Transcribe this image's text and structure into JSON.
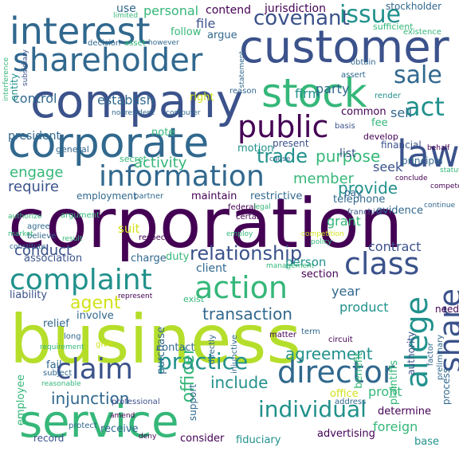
{
  "palette": {
    "dark_purple": "#440154",
    "indigo": "#3b528b",
    "blue": "#31688e",
    "teal": "#21918c",
    "green": "#35b779",
    "lime": "#b5de2b",
    "yellow": "#d2e21b"
  },
  "words": [
    {
      "text": "corporation",
      "color": "#440154"
    },
    {
      "text": "business",
      "color": "#b5de2b"
    },
    {
      "text": "company",
      "color": "#3b528b"
    },
    {
      "text": "customer",
      "color": "#3b528b"
    },
    {
      "text": "corporate",
      "color": "#31688e"
    },
    {
      "text": "service",
      "color": "#35b779"
    },
    {
      "text": "stock",
      "color": "#35b779"
    },
    {
      "text": "interest",
      "color": "#31688e"
    },
    {
      "text": "shareholder",
      "color": "#31688e"
    },
    {
      "text": "information",
      "color": "#31688e"
    },
    {
      "text": "public",
      "color": "#440154"
    },
    {
      "text": "law",
      "color": "#3b528b"
    },
    {
      "text": "action",
      "color": "#35b779"
    },
    {
      "text": "complaint",
      "color": "#21918c"
    },
    {
      "text": "director",
      "color": "#31688e"
    },
    {
      "text": "claim",
      "color": "#3b528b"
    },
    {
      "text": "class",
      "color": "#3b528b"
    },
    {
      "text": "share",
      "color": "#3b528b"
    },
    {
      "text": "allege",
      "color": "#21918c"
    },
    {
      "text": "practice",
      "color": "#21918c"
    },
    {
      "text": "individual",
      "color": "#21918c"
    },
    {
      "text": "covenant",
      "color": "#3b528b"
    },
    {
      "text": "issue",
      "color": "#21918c"
    },
    {
      "text": "sale",
      "color": "#31688e"
    },
    {
      "text": "act",
      "color": "#21918c"
    },
    {
      "text": "relationship",
      "color": "#3b528b"
    },
    {
      "text": "trade",
      "color": "#21918c"
    },
    {
      "text": "agent",
      "color": "#d2e21b"
    },
    {
      "text": "agreement",
      "color": "#21918c"
    },
    {
      "text": "officer",
      "color": "#35b779"
    },
    {
      "text": "transaction",
      "color": "#31688e"
    },
    {
      "text": "injunction",
      "color": "#31688e"
    },
    {
      "text": "include",
      "color": "#21918c"
    },
    {
      "text": "purpose",
      "color": "#35b779"
    },
    {
      "text": "provide",
      "color": "#21918c"
    },
    {
      "text": "member",
      "color": "#35b779"
    },
    {
      "text": "conduct",
      "color": "#3b528b"
    },
    {
      "text": "require",
      "color": "#3b528b"
    },
    {
      "text": "engage",
      "color": "#35b779"
    },
    {
      "text": "activity",
      "color": "#35b779"
    },
    {
      "text": "firm",
      "color": "#21918c"
    },
    {
      "text": "party",
      "color": "#31688e"
    },
    {
      "text": "sell",
      "color": "#31688e"
    },
    {
      "text": "control",
      "color": "#31688e"
    },
    {
      "text": "establish",
      "color": "#31688e"
    },
    {
      "text": "personal",
      "color": "#35b779"
    },
    {
      "text": "jurisdiction",
      "color": "#440154"
    },
    {
      "text": "contend",
      "color": "#440154"
    },
    {
      "text": "file",
      "color": "#3b528b"
    },
    {
      "text": "follow",
      "color": "#35b779"
    },
    {
      "text": "argue",
      "color": "#31688e"
    },
    {
      "text": "use",
      "color": "#31688e"
    },
    {
      "text": "right",
      "color": "#d2e21b"
    },
    {
      "text": "president",
      "color": "#31688e"
    },
    {
      "text": "note",
      "color": "#35b779"
    },
    {
      "text": "motion",
      "color": "#21918c"
    },
    {
      "text": "present",
      "color": "#3b528b"
    },
    {
      "text": "common",
      "color": "#440154"
    },
    {
      "text": "fee",
      "color": "#35b779"
    },
    {
      "text": "seek",
      "color": "#3b528b"
    },
    {
      "text": "list",
      "color": "#3b528b"
    },
    {
      "text": "financial",
      "color": "#3b528b"
    },
    {
      "text": "telephone",
      "color": "#31688e"
    },
    {
      "text": "pay",
      "color": "#31688e"
    },
    {
      "text": "grant",
      "color": "#35b779"
    },
    {
      "text": "contract",
      "color": "#3b528b"
    },
    {
      "text": "restrictive",
      "color": "#31688e"
    },
    {
      "text": "maintain",
      "color": "#440154"
    },
    {
      "text": "employment",
      "color": "#31688e"
    },
    {
      "text": "suit",
      "color": "#d2e21b"
    },
    {
      "text": "charge",
      "color": "#31688e"
    },
    {
      "text": "duty",
      "color": "#35b779"
    },
    {
      "text": "client",
      "color": "#31688e"
    },
    {
      "text": "association",
      "color": "#3b528b"
    },
    {
      "text": "person",
      "color": "#21918c"
    },
    {
      "text": "section",
      "color": "#440154"
    },
    {
      "text": "year",
      "color": "#31688e"
    },
    {
      "text": "product",
      "color": "#21918c"
    },
    {
      "text": "liability",
      "color": "#3b528b"
    },
    {
      "text": "relief",
      "color": "#31688e"
    },
    {
      "text": "involve",
      "color": "#31688e"
    },
    {
      "text": "purchase",
      "color": "#31688e"
    },
    {
      "text": "contact",
      "color": "#31688e"
    },
    {
      "text": "employee",
      "color": "#35b779"
    },
    {
      "text": "fail",
      "color": "#31688e"
    },
    {
      "text": "record",
      "color": "#3b528b"
    },
    {
      "text": "receive",
      "color": "#31688e"
    },
    {
      "text": "consider",
      "color": "#440154"
    },
    {
      "text": "fiduciary",
      "color": "#21918c"
    },
    {
      "text": "advertising",
      "color": "#440154"
    },
    {
      "text": "foreign",
      "color": "#35b779"
    },
    {
      "text": "base",
      "color": "#21918c"
    },
    {
      "text": "determine",
      "color": "#440154"
    },
    {
      "text": "profit",
      "color": "#35b779"
    },
    {
      "text": "office",
      "color": "#d2e21b"
    },
    {
      "text": "plaintiffs",
      "color": "#35b779"
    },
    {
      "text": "authority",
      "color": "#3b528b"
    },
    {
      "text": "process",
      "color": "#31688e"
    },
    {
      "text": "benefit",
      "color": "#35b779"
    },
    {
      "text": "evidence",
      "color": "#31688e"
    },
    {
      "text": "support",
      "color": "#31688e"
    },
    {
      "text": "stockholder",
      "color": "#31688e"
    },
    {
      "text": "sufficient",
      "color": "#35b779"
    },
    {
      "text": "statement",
      "color": "#31688e"
    },
    {
      "text": "develop",
      "color": "#440154"
    },
    {
      "text": "principal",
      "color": "#31688e"
    },
    {
      "text": "obtain",
      "color": "#31688e"
    },
    {
      "text": "assert",
      "color": "#31688e"
    },
    {
      "text": "basis",
      "color": "#3b528b"
    },
    {
      "text": "federal",
      "color": "#440154"
    },
    {
      "text": "certain",
      "color": "#440154"
    },
    {
      "text": "franchise",
      "color": "#3b528b"
    },
    {
      "text": "need",
      "color": "#440154"
    },
    {
      "text": "exist",
      "color": "#35b779"
    },
    {
      "text": "partner",
      "color": "#31688e"
    },
    {
      "text": "secret",
      "color": "#35b779"
    },
    {
      "text": "general",
      "color": "#31688e"
    },
    {
      "text": "entity",
      "color": "#21918c"
    },
    {
      "text": "decision",
      "color": "#31688e"
    },
    {
      "text": "asset",
      "color": "#35b779"
    },
    {
      "text": "however",
      "color": "#31688e"
    },
    {
      "text": "reason",
      "color": "#31688e"
    },
    {
      "text": "argument",
      "color": "#35b779"
    },
    {
      "text": "authorize",
      "color": "#35b779"
    },
    {
      "text": "agree",
      "color": "#31688e"
    },
    {
      "text": "believe",
      "color": "#31688e"
    },
    {
      "text": "market",
      "color": "#35b779"
    },
    {
      "text": "legal",
      "color": "#35b779"
    },
    {
      "text": "competition",
      "color": "#d2e21b"
    },
    {
      "text": "policy",
      "color": "#35b779"
    },
    {
      "text": "management",
      "color": "#35b779"
    },
    {
      "text": "respect",
      "color": "#440154"
    },
    {
      "text": "result",
      "color": "#35b779"
    },
    {
      "text": "constitute",
      "color": "#31688e"
    },
    {
      "text": "injunctive",
      "color": "#31688e"
    },
    {
      "text": "directly",
      "color": "#31688e"
    },
    {
      "text": "matter",
      "color": "#440154"
    },
    {
      "text": "term",
      "color": "#31688e"
    },
    {
      "text": "circuit",
      "color": "#440154"
    },
    {
      "text": "address",
      "color": "#31688e"
    },
    {
      "text": "preliminary",
      "color": "#31688e"
    },
    {
      "text": "factor",
      "color": "#31688e"
    },
    {
      "text": "subject",
      "color": "#31688e"
    },
    {
      "text": "reasonable",
      "color": "#35b779"
    },
    {
      "text": "professional",
      "color": "#3b528b"
    },
    {
      "text": "protect",
      "color": "#31688e"
    },
    {
      "text": "long",
      "color": "#31688e"
    },
    {
      "text": "give",
      "color": "#d2e21b"
    },
    {
      "text": "requirement",
      "color": "#35b779"
    },
    {
      "text": "interference",
      "color": "#35b779"
    },
    {
      "text": "subsidiary",
      "color": "#3b528b"
    },
    {
      "text": "nonresident",
      "color": "#31688e"
    },
    {
      "text": "computer",
      "color": "#31688e"
    },
    {
      "text": "render",
      "color": "#21918c"
    },
    {
      "text": "existence",
      "color": "#35b779"
    },
    {
      "text": "limited",
      "color": "#35b779"
    },
    {
      "text": "cause",
      "color": "#31688e"
    },
    {
      "text": "conclude",
      "color": "#440154"
    },
    {
      "text": "behalf",
      "color": "#440154"
    },
    {
      "text": "compete",
      "color": "#440154"
    },
    {
      "text": "continue",
      "color": "#31688e"
    },
    {
      "text": "employ",
      "color": "#35b779"
    },
    {
      "text": "statute",
      "color": "#35b779"
    },
    {
      "text": "represent",
      "color": "#440154"
    },
    {
      "text": "amend",
      "color": "#440154"
    },
    {
      "text": "deny",
      "color": "#440154"
    }
  ]
}
